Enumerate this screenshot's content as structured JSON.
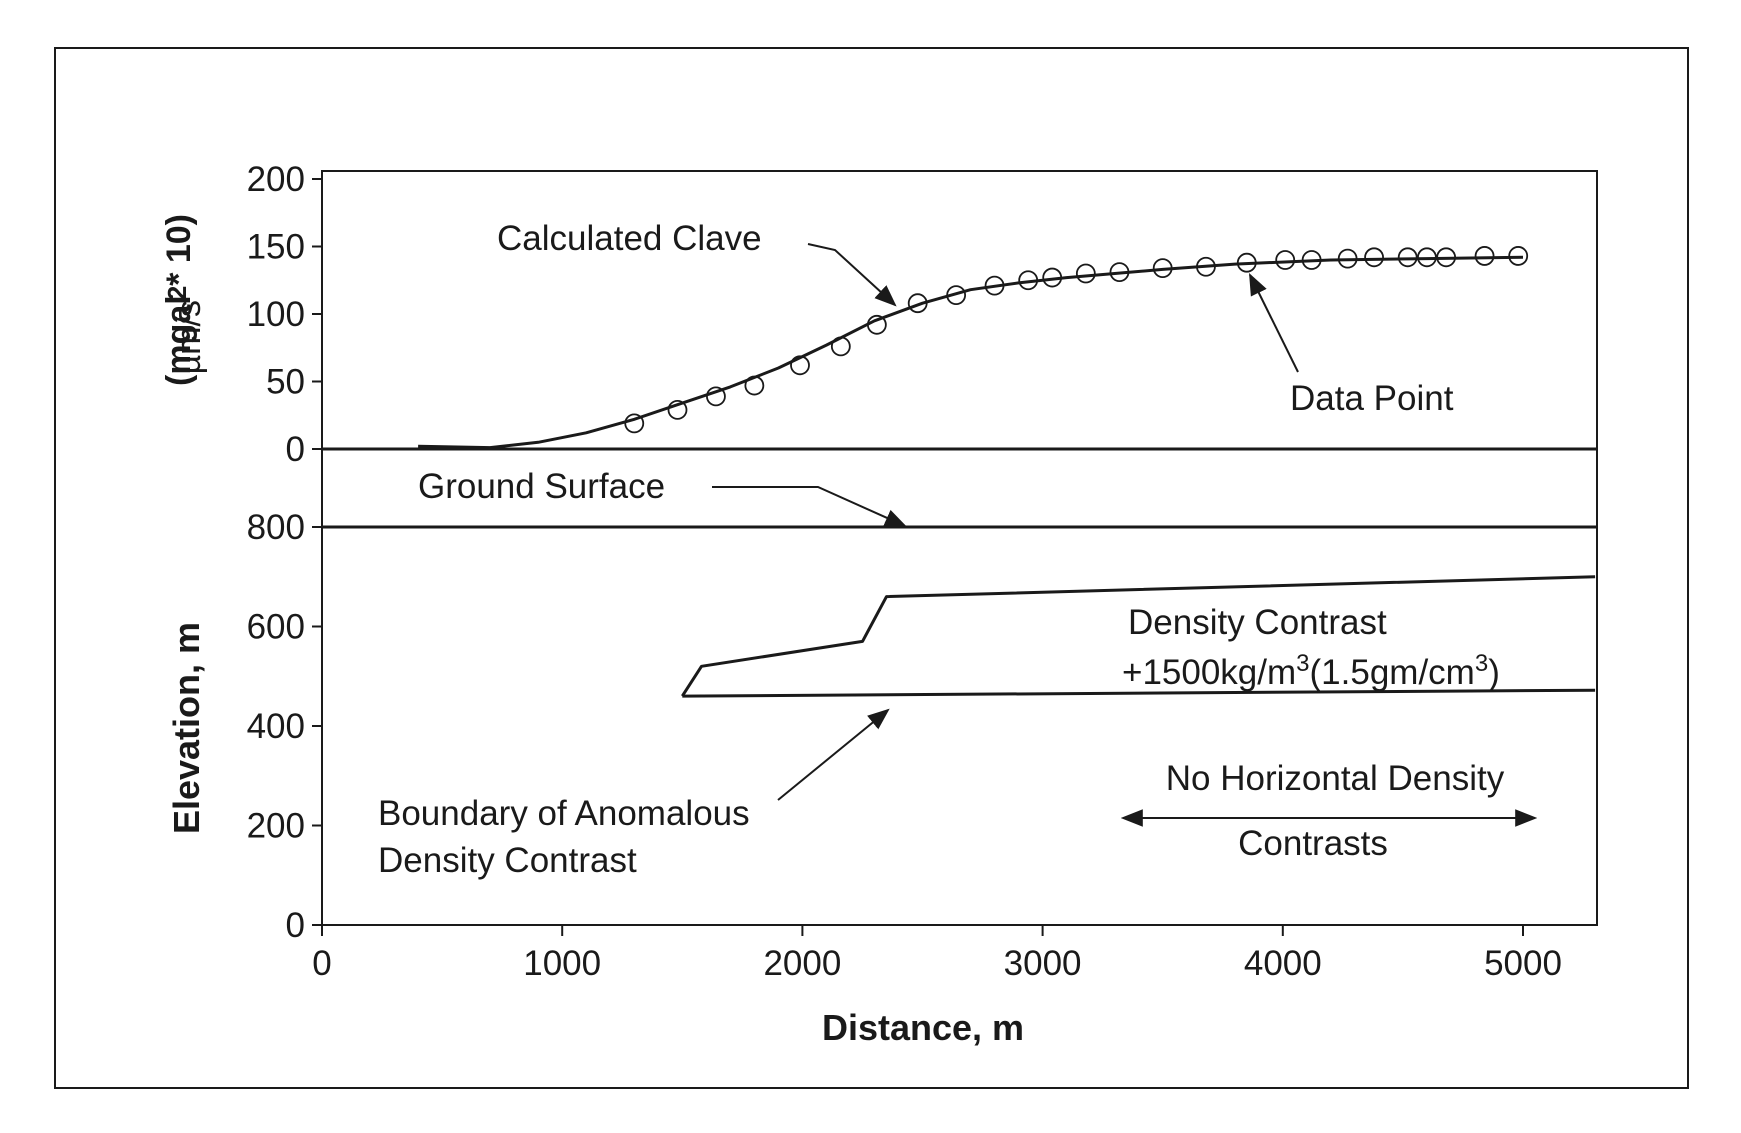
{
  "chart_data": [
    {
      "type": "line",
      "panel": "gravity",
      "ylabel_unit": "µm/s",
      "ylabel_unit_sup": "2",
      "ylabel_alt": "(mgal * 10)",
      "ylim": [
        0,
        200
      ],
      "yticks": [
        {
          "v": 0,
          "label": "0"
        },
        {
          "v": 50,
          "label": "50"
        },
        {
          "v": 100,
          "label": "100"
        },
        {
          "v": 150,
          "label": "150"
        },
        {
          "v": 200,
          "label": "200"
        }
      ],
      "series": [
        {
          "kind": "calculated_curve",
          "x": [
            400,
            700,
            900,
            1100,
            1300,
            1500,
            1700,
            1900,
            2100,
            2300,
            2500,
            2700,
            2900,
            3100,
            3300,
            3500,
            3800,
            4200,
            4600,
            5000
          ],
          "y": [
            2,
            1,
            5,
            12,
            22,
            34,
            46,
            60,
            77,
            95,
            108,
            118,
            123,
            127,
            130,
            133,
            137,
            140,
            141,
            142
          ]
        },
        {
          "kind": "data_points",
          "x": [
            1300,
            1480,
            1640,
            1800,
            1990,
            2160,
            2310,
            2480,
            2640,
            2800,
            2940,
            3040,
            3180,
            3320,
            3500,
            3680,
            3850,
            4010,
            4120,
            4270,
            4380,
            4520,
            4600,
            4680,
            4840,
            4980
          ],
          "y": [
            19,
            29,
            39,
            47,
            62,
            76,
            92,
            108,
            114,
            121,
            125,
            127,
            130,
            131,
            134,
            135,
            138,
            140,
            140,
            141,
            142,
            142,
            142,
            142,
            143,
            143
          ]
        }
      ],
      "annotations": {
        "curve": "Calculated Clave",
        "points": "Data Point"
      }
    },
    {
      "type": "line",
      "panel": "model",
      "ylabel": "Elevation, m",
      "xlabel": "Distance, m",
      "xlim": [
        0,
        5300
      ],
      "ylim": [
        0,
        800
      ],
      "xticks": [
        {
          "v": 0,
          "label": "0"
        },
        {
          "v": 1000,
          "label": "1000"
        },
        {
          "v": 2000,
          "label": "2000"
        },
        {
          "v": 3000,
          "label": "3000"
        },
        {
          "v": 4000,
          "label": "4000"
        },
        {
          "v": 5000,
          "label": "5000"
        }
      ],
      "yticks": [
        {
          "v": 0,
          "label": "0"
        },
        {
          "v": 200,
          "label": "200"
        },
        {
          "v": 400,
          "label": "400"
        },
        {
          "v": 600,
          "label": "600"
        },
        {
          "v": 800,
          "label": "800"
        }
      ],
      "ground_surface_elevation": 800,
      "anomaly_boundary": {
        "top": {
          "x": [
            1500,
            1580,
            2250,
            2350,
            5300
          ],
          "y": [
            460,
            520,
            570,
            660,
            700
          ]
        },
        "bottom": {
          "x": [
            1500,
            5300
          ],
          "y": [
            460,
            472
          ]
        }
      },
      "annotations": {
        "ground": "Ground Surface",
        "boundary_line1": "Boundary of Anomalous",
        "boundary_line2": "Density Contrast",
        "density_line1": "Density Contrast",
        "density_line2_a": "+1500kg/m",
        "density_line2_sup1": "3",
        "density_line2_b": "(1.5gm/cm",
        "density_line2_sup2": "3",
        "density_line2_c": ")",
        "nohoriz_line1": "No Horizontal Density",
        "nohoriz_line2": "Contrasts"
      }
    }
  ]
}
